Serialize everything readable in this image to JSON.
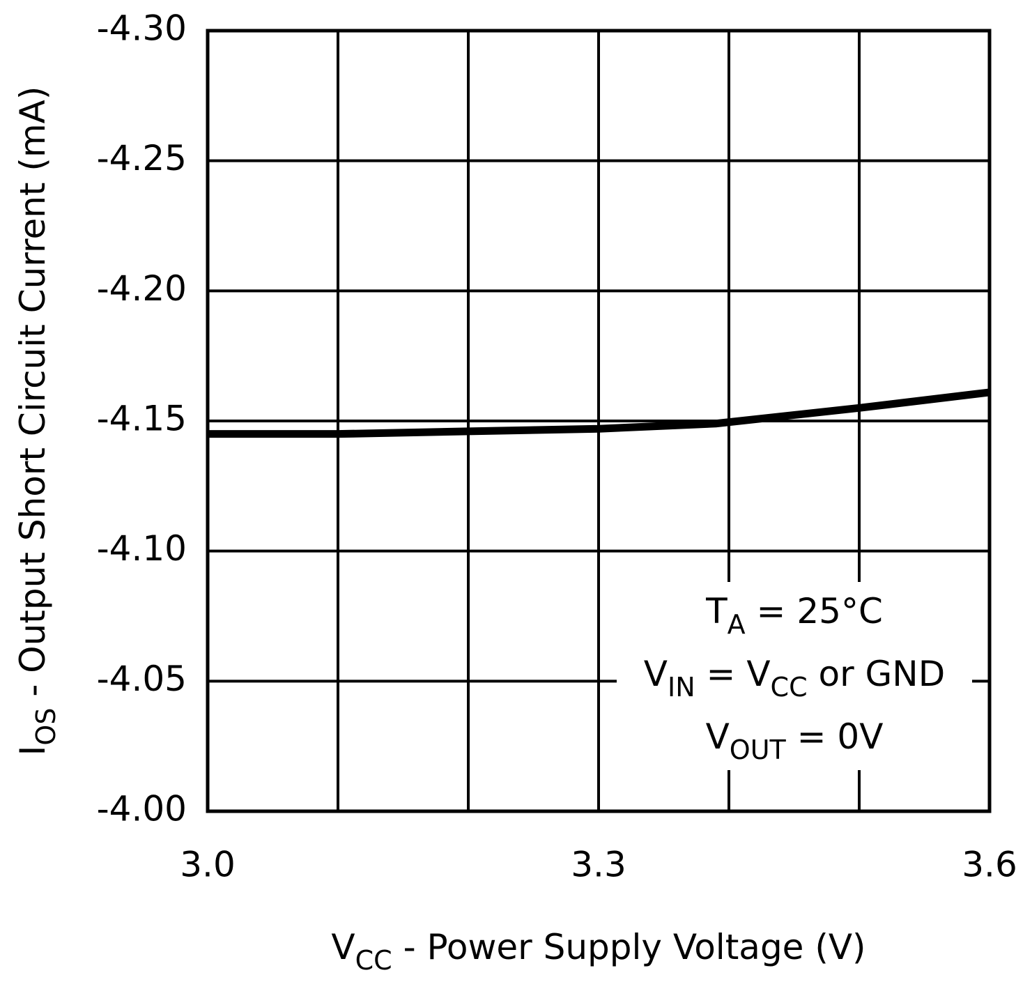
{
  "chart_data": {
    "type": "line",
    "x_label": [
      "V",
      "CC",
      " - Power Supply Voltage (V)"
    ],
    "y_label": [
      "I",
      "OS",
      " - Output Short Circuit Current (mA)"
    ],
    "annotation": [
      [
        "T",
        "A",
        " = 25°C"
      ],
      [
        "V",
        "IN",
        " = V",
        "CC",
        " or GND"
      ],
      [
        "V",
        "OUT",
        " = 0V"
      ]
    ],
    "x": [
      3.0,
      3.1,
      3.2,
      3.3,
      3.39,
      3.5,
      3.6
    ],
    "series": [
      {
        "color": "#000000",
        "values": [
          -4.145,
          -4.145,
          -4.146,
          -4.147,
          -4.149,
          -4.155,
          -4.161
        ]
      }
    ],
    "xlim": [
      3.0,
      3.6
    ],
    "xticks": [
      {
        "value": 3.0,
        "label": "3.0"
      },
      {
        "value": 3.1,
        "label": null
      },
      {
        "value": 3.2,
        "label": null
      },
      3.3,
      {
        "value": 3.4,
        "label": null
      },
      {
        "value": 3.5,
        "label": null
      },
      3.6
    ],
    "ylim": [
      -4.0,
      -4.3
    ],
    "yticks": [
      {
        "value": -4.0,
        "label": "-4.00"
      },
      -4.05,
      {
        "value": -4.1,
        "label": "-4.10"
      },
      -4.15,
      {
        "value": -4.2,
        "label": "-4.20"
      },
      -4.25,
      {
        "value": -4.3,
        "label": "-4.30"
      }
    ],
    "grid": true
  }
}
